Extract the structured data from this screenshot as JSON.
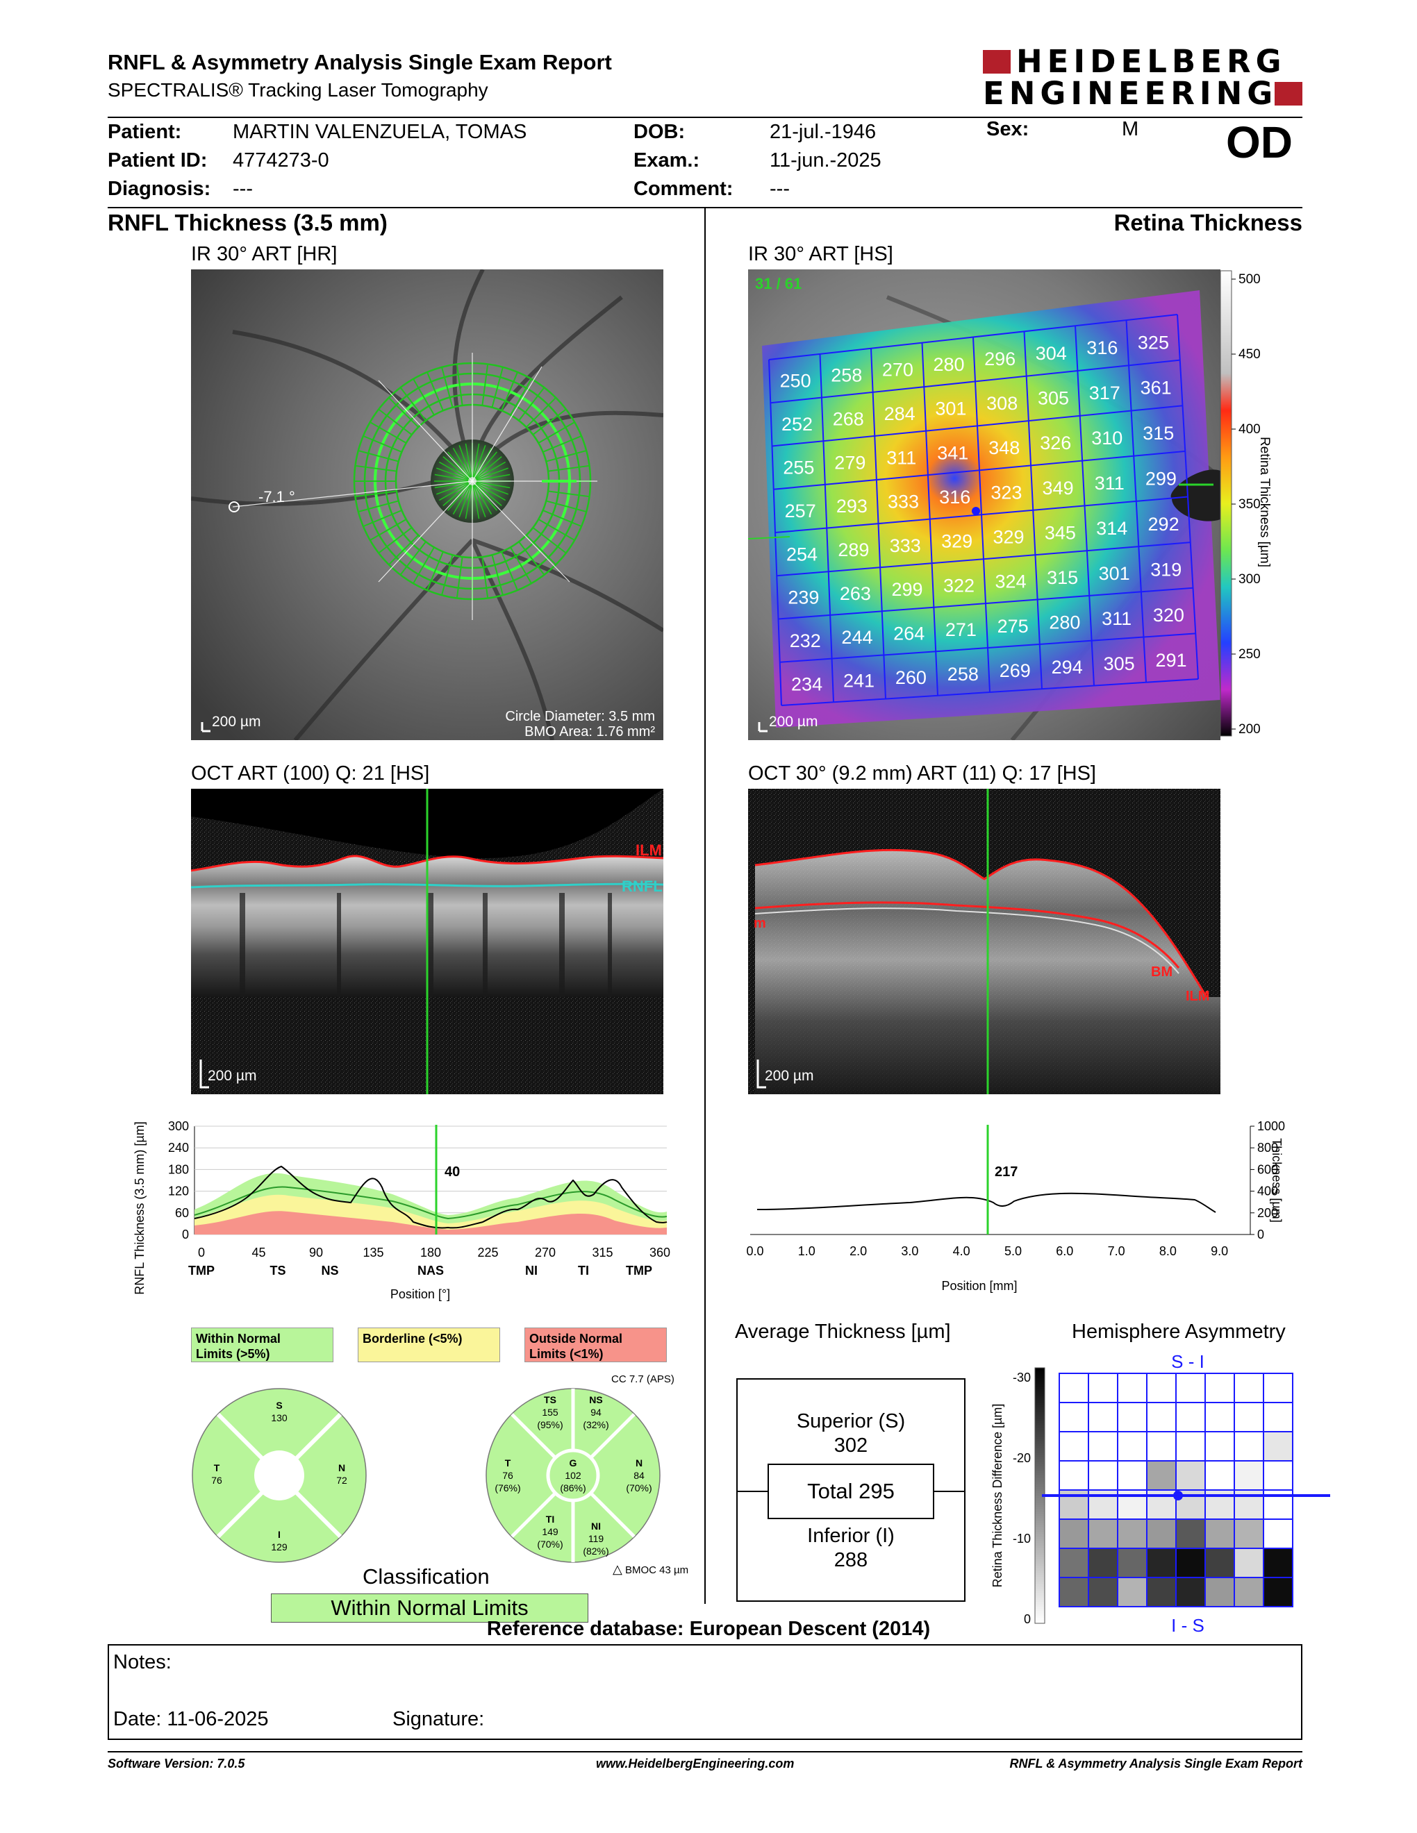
{
  "header": {
    "title": "RNFL & Asymmetry Analysis Single Exam Report",
    "subtitle": "SPECTRALIS® Tracking Laser Tomography",
    "logo_line1": "HEIDELBERG",
    "logo_line2": "ENGINEERING",
    "brand_color": "#b31f2a"
  },
  "patient": {
    "patient_label": "Patient:",
    "patient_value": "MARTIN VALENZUELA, TOMAS",
    "id_label": "Patient ID:",
    "id_value": "4774273-0",
    "diagnosis_label": "Diagnosis:",
    "diagnosis_value": "---",
    "dob_label": "DOB:",
    "dob_value": "21-jul.-1946",
    "exam_label": "Exam.:",
    "exam_value": "11-jun.-2025",
    "comment_label": "Comment:",
    "comment_value": "---",
    "sex_label": "Sex:",
    "sex_value": "M",
    "eye": "OD"
  },
  "left": {
    "section_title": "RNFL Thickness (3.5 mm)",
    "ir_title": "IR 30° ART [HR]",
    "ir_scale": "200 µm",
    "ir_angle": "-7.1 °",
    "ir_circle": "Circle Diameter: 3.5 mm",
    "ir_bmo": "BMO Area: 1.76 mm²",
    "oct_title": "OCT ART (100) Q: 21 [HS]",
    "oct_scale": "200 µm",
    "oct_ilm": "ILM",
    "oct_rnfl": "RNFL",
    "graph_ylabel": "RNFL Thickness (3.5 mm) [µm]",
    "graph_xlabel": "Position [°]",
    "graph_value": "40",
    "graph_yticks": [
      "300",
      "240",
      "180",
      "120",
      "60",
      "0"
    ],
    "graph_xticks": [
      "0",
      "45",
      "90",
      "135",
      "180",
      "225",
      "270",
      "315",
      "360"
    ],
    "graph_sectors": [
      "TMP",
      "TS",
      "NS",
      "NAS",
      "NI",
      "TI",
      "TMP"
    ]
  },
  "right": {
    "section_title": "Retina Thickness",
    "ir_title": "IR 30° ART [HS]",
    "ir_scale": "200 µm",
    "ir_frame": "31 / 61",
    "colorbar_label": "Retina Thickness [µm]",
    "colorbar_ticks": [
      "500",
      "450",
      "400",
      "350",
      "300",
      "250",
      "200"
    ],
    "grid": [
      [
        "250",
        "258",
        "270",
        "280",
        "296",
        "304",
        "316",
        "325"
      ],
      [
        "252",
        "268",
        "284",
        "301",
        "308",
        "305",
        "317",
        "361"
      ],
      [
        "255",
        "279",
        "311",
        "341",
        "348",
        "326",
        "310",
        "315"
      ],
      [
        "257",
        "293",
        "333",
        "316",
        "323",
        "349",
        "311",
        "299"
      ],
      [
        "254",
        "289",
        "333",
        "329",
        "329",
        "345",
        "314",
        "292"
      ],
      [
        "239",
        "263",
        "299",
        "322",
        "324",
        "315",
        "301",
        "319"
      ],
      [
        "232",
        "244",
        "264",
        "271",
        "275",
        "280",
        "311",
        "320"
      ],
      [
        "234",
        "241",
        "260",
        "258",
        "269",
        "294",
        "305",
        "291"
      ]
    ],
    "oct_title": "OCT 30° (9.2 mm) ART (11) Q: 17 [HS]",
    "oct_scale": "200 µm",
    "oct_bm": "BM",
    "oct_ilm": "ILM",
    "oct_left_label": "m",
    "graph_ylabel": "Thickness [µm]",
    "graph_xlabel": "Position [mm]",
    "graph_value": "217",
    "graph_yticks": [
      "1000",
      "800",
      "600",
      "400",
      "200",
      "0"
    ],
    "graph_xticks": [
      "0.0",
      "1.0",
      "2.0",
      "3.0",
      "4.0",
      "5.0",
      "6.0",
      "7.0",
      "8.0",
      "9.0"
    ]
  },
  "legend": {
    "within": "Within Normal\nLimits (>5%)",
    "borderline": "Borderline (<5%)",
    "outside": "Outside Normal\nLimits (<1%)",
    "within_color": "#b8f59a",
    "borderline_color": "#faf59a",
    "outside_color": "#f7938a"
  },
  "pie4": {
    "S": {
      "label": "S",
      "value": "130"
    },
    "N": {
      "label": "N",
      "value": "72"
    },
    "I": {
      "label": "I",
      "value": "129"
    },
    "T": {
      "label": "T",
      "value": "76"
    }
  },
  "pie6": {
    "cc": "CC 7.7 (APS)",
    "TS": {
      "label": "TS",
      "value": "155",
      "pct": "(95%)"
    },
    "NS": {
      "label": "NS",
      "value": "94",
      "pct": "(32%)"
    },
    "N": {
      "label": "N",
      "value": "84",
      "pct": "(70%)"
    },
    "NI": {
      "label": "NI",
      "value": "119",
      "pct": "(82%)"
    },
    "TI": {
      "label": "TI",
      "value": "149",
      "pct": "(70%)"
    },
    "T": {
      "label": "T",
      "value": "76",
      "pct": "(76%)"
    },
    "G": {
      "label": "G",
      "value": "102",
      "pct": "(86%)"
    },
    "bmoc": "BMOC 43 µm"
  },
  "classification": {
    "title": "Classification",
    "result": "Within Normal Limits"
  },
  "avg_thickness": {
    "title": "Average Thickness [µm]",
    "superior_label": "Superior (S)",
    "superior_value": "302",
    "total": "Total 295",
    "inferior_label": "Inferior (I)",
    "inferior_value": "288"
  },
  "asymmetry": {
    "title": "Hemisphere Asymmetry",
    "top_label": "S - I",
    "bottom_label": "I - S",
    "axis_label": "Retina Thickness Difference [µm]",
    "axis_ticks": [
      "-30",
      "-20",
      "-10",
      "0"
    ],
    "cells": [
      [
        0,
        0,
        0,
        0,
        0,
        0,
        0,
        0
      ],
      [
        0,
        0,
        0,
        0,
        0,
        0,
        0,
        0
      ],
      [
        0,
        0,
        0,
        0,
        0,
        0,
        0,
        0.1
      ],
      [
        0,
        0,
        0,
        0.35,
        0.15,
        0,
        0.05,
        0
      ],
      [
        0.2,
        0.1,
        0.05,
        0.1,
        0.15,
        0.1,
        0.1,
        0
      ],
      [
        0.4,
        0.35,
        0.35,
        0.4,
        0.65,
        0.35,
        0.3,
        0
      ],
      [
        0.55,
        0.75,
        0.6,
        0.85,
        0.95,
        0.75,
        0.15,
        0.95
      ],
      [
        0.6,
        0.7,
        0.3,
        0.75,
        0.85,
        0.4,
        0.35,
        0.95
      ]
    ]
  },
  "reference": "Reference database: European Descent (2014)",
  "notes": {
    "notes_label": "Notes:",
    "date_label": "Date: 11-06-2025",
    "signature_label": "Signature:"
  },
  "footer": {
    "version": "Software Version: 7.0.5",
    "url": "www.HeidelbergEngineering.com",
    "report": "RNFL & Asymmetry Analysis Single Exam Report"
  }
}
